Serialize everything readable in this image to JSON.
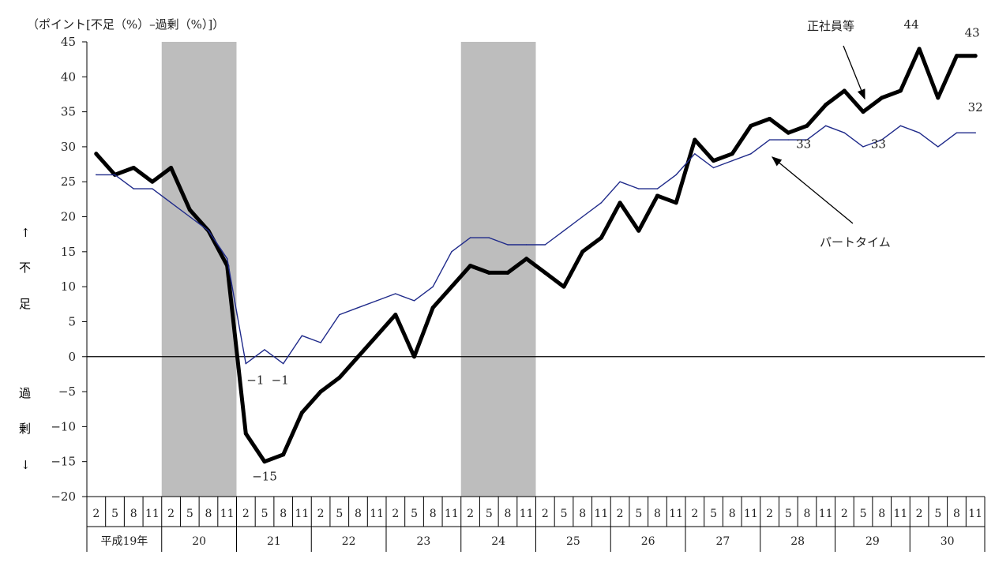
{
  "chart_data": {
    "type": "line",
    "ylabel": "（ポイント[不足（%）–過剰（%）]）",
    "ylabel_side": {
      "up_arrow": "↑",
      "up_1": "不",
      "up_2": "足",
      "down_1": "過",
      "down_2": "剰",
      "down_arrow": "↓"
    },
    "ylim": [
      -20,
      45
    ],
    "y_ticks": [
      45,
      40,
      35,
      30,
      25,
      20,
      15,
      10,
      5,
      0,
      -5,
      -10,
      -15,
      -20
    ],
    "x_months": [
      "2",
      "5",
      "8",
      "11",
      "2",
      "5",
      "8",
      "11",
      "2",
      "5",
      "8",
      "11",
      "2",
      "5",
      "8",
      "11",
      "2",
      "5",
      "8",
      "11",
      "2",
      "5",
      "8",
      "11",
      "2",
      "5",
      "8",
      "11",
      "2",
      "5",
      "8",
      "11",
      "2",
      "5",
      "8",
      "11",
      "2",
      "5",
      "8",
      "11",
      "2",
      "5",
      "8",
      "11",
      "2",
      "5",
      "8",
      "11"
    ],
    "x_years": [
      "平成19年",
      "20",
      "21",
      "22",
      "23",
      "24",
      "25",
      "26",
      "27",
      "28",
      "29",
      "30"
    ],
    "shaded_periods_quarter_index": [
      [
        4,
        8
      ],
      [
        20,
        24
      ]
    ],
    "series": [
      {
        "name": "正社員等",
        "color": "#000000",
        "values": [
          29,
          26,
          27,
          25,
          27,
          21,
          18,
          13,
          -11,
          -15,
          -14,
          -8,
          -5,
          -3,
          0,
          3,
          6,
          0,
          7,
          10,
          13,
          12,
          12,
          14,
          12,
          10,
          15,
          17,
          22,
          18,
          23,
          22,
          31,
          28,
          29,
          33,
          34,
          32,
          33,
          36,
          38,
          35,
          37,
          38,
          44,
          37,
          43,
          43
        ]
      },
      {
        "name": "パートタイム",
        "color": "#1f2a8a",
        "values": [
          26,
          26,
          24,
          24,
          22,
          20,
          18,
          14,
          -1,
          1,
          -1,
          3,
          2,
          6,
          7,
          8,
          9,
          8,
          10,
          15,
          17,
          17,
          16,
          16,
          16,
          18,
          20,
          22,
          25,
          24,
          24,
          26,
          29,
          27,
          28,
          29,
          31,
          31,
          31,
          33,
          32,
          30,
          31,
          33,
          32,
          30,
          32,
          32
        ]
      }
    ],
    "data_labels": [
      {
        "text": "−1",
        "series": 1,
        "index": 8
      },
      {
        "text": "−1",
        "series": 1,
        "index": 10
      },
      {
        "text": "−15",
        "series": 0,
        "index": 9
      },
      {
        "text": "44",
        "series": 0,
        "index": 44
      },
      {
        "text": "43",
        "series": 0,
        "index": 47
      },
      {
        "text": "32",
        "series": 1,
        "index": 47
      },
      {
        "text": "33",
        "series": 1,
        "index": 39
      },
      {
        "text": "33",
        "series": 1,
        "index": 43
      }
    ],
    "legend_callouts": [
      {
        "text": "正社員等",
        "series": 0
      },
      {
        "text": "パートタイム",
        "series": 1
      }
    ]
  }
}
